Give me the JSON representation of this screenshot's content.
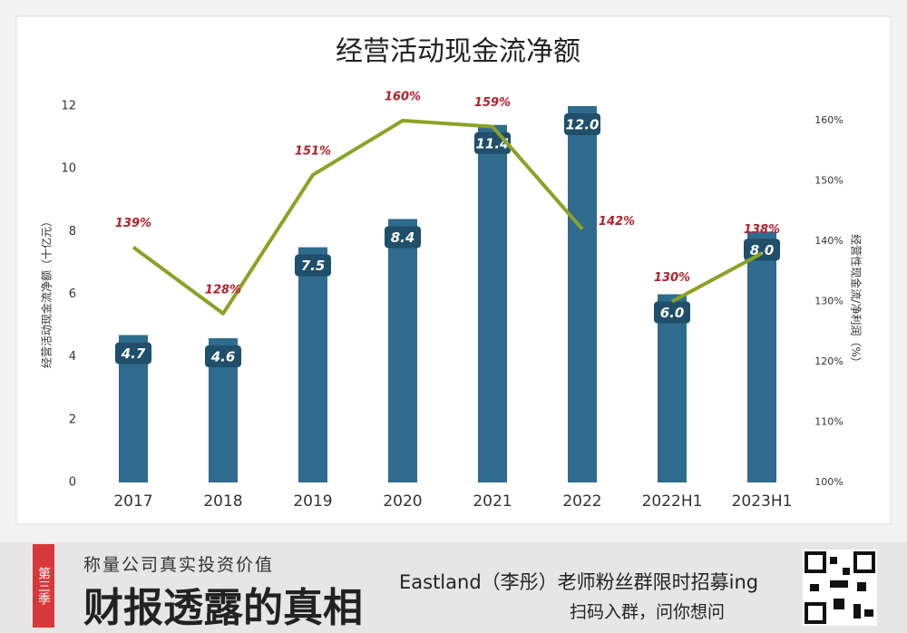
{
  "chart_data": {
    "type": "bar",
    "title": "经营活动现金流净额",
    "y_label": "经营活动现金流净额（十亿元）",
    "y2_label": "经营性现金流/净利润（%）",
    "categories": [
      "2017",
      "2018",
      "2019",
      "2020",
      "2021",
      "2022",
      "2022H1",
      "2023H1"
    ],
    "series": [
      {
        "name": "经营活动现金流净额",
        "type": "bar",
        "color": "#2f6b8c",
        "values": [
          4.7,
          4.6,
          7.5,
          8.4,
          11.4,
          12.0,
          6.0,
          8.0
        ],
        "value_labels": [
          "4.7",
          "4.6",
          "7.5",
          "8.4",
          "11.4",
          "12.0",
          "6.0",
          "8.0"
        ]
      },
      {
        "name": "经营性现金流/净利润",
        "type": "line",
        "axis": "y2",
        "color": "#8aa226",
        "values": [
          139,
          128,
          151,
          160,
          159,
          142,
          130,
          138
        ],
        "value_labels": [
          "139%",
          "128%",
          "151%",
          "160%",
          "159%",
          "142%",
          "130%",
          "138%"
        ],
        "break_after": [
          5
        ]
      }
    ],
    "ylim": [
      0,
      12
    ],
    "yticks": [
      0,
      2,
      4,
      6,
      8,
      10,
      12
    ],
    "y2lim": [
      100,
      162.4
    ],
    "y2ticks": [
      {
        "value": 100,
        "label": "100%"
      },
      {
        "value": 110,
        "label": "110%"
      },
      {
        "value": 120,
        "label": "120%"
      },
      {
        "value": 130,
        "label": "130%"
      },
      {
        "value": 140,
        "label": "140%"
      },
      {
        "value": 150,
        "label": "150%"
      },
      {
        "value": 160,
        "label": "160%"
      }
    ],
    "grid": false
  },
  "banner": {
    "tag": "第三季",
    "subtitle": "称量公司真实投资价值",
    "headline": "财报透露的真相",
    "promo": "Eastland（李彤）老师粉丝群限时招募ing",
    "cta": "扫码入群，问你想问"
  }
}
